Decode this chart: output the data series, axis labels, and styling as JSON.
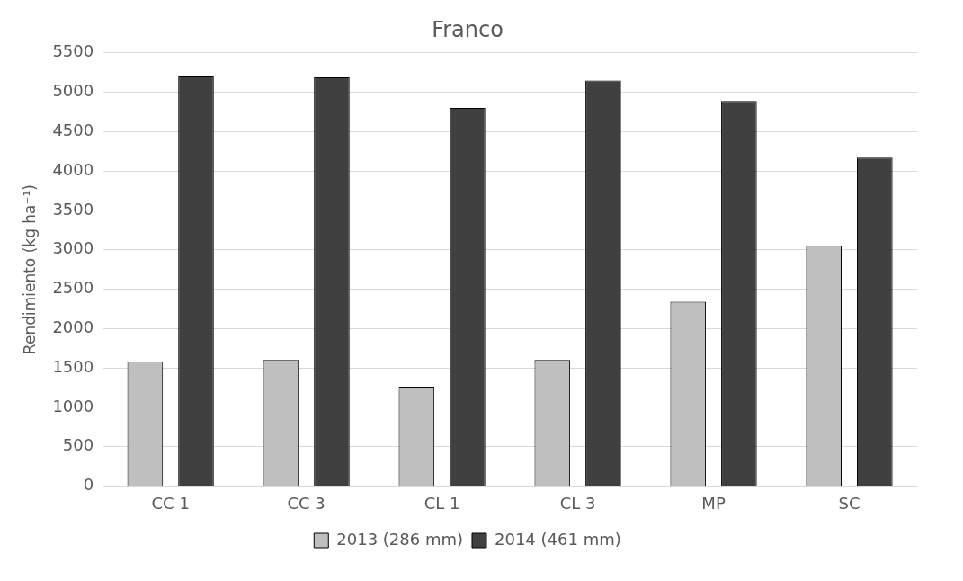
{
  "chart_data": {
    "type": "bar",
    "title": "Franco",
    "ylabel": "Rendimiento (kg ha⁻¹)",
    "categories": [
      "CC 1",
      "CC 3",
      "CL 1",
      "CL 3",
      "MP",
      "SC"
    ],
    "series": [
      {
        "name": "2013 (286 mm)",
        "color": "#bfbfbf",
        "values": [
          1580,
          1600,
          1260,
          1600,
          2340,
          3050
        ]
      },
      {
        "name": "2014 (461 mm)",
        "color": "#404040",
        "values": [
          5200,
          5190,
          4800,
          5150,
          4890,
          4170
        ]
      }
    ],
    "ylim": [
      0,
      5500
    ],
    "yticks": [
      0,
      500,
      1000,
      1500,
      2000,
      2500,
      3000,
      3500,
      4000,
      4500,
      5000,
      5500
    ],
    "grid": "y",
    "legend": "bottom"
  }
}
